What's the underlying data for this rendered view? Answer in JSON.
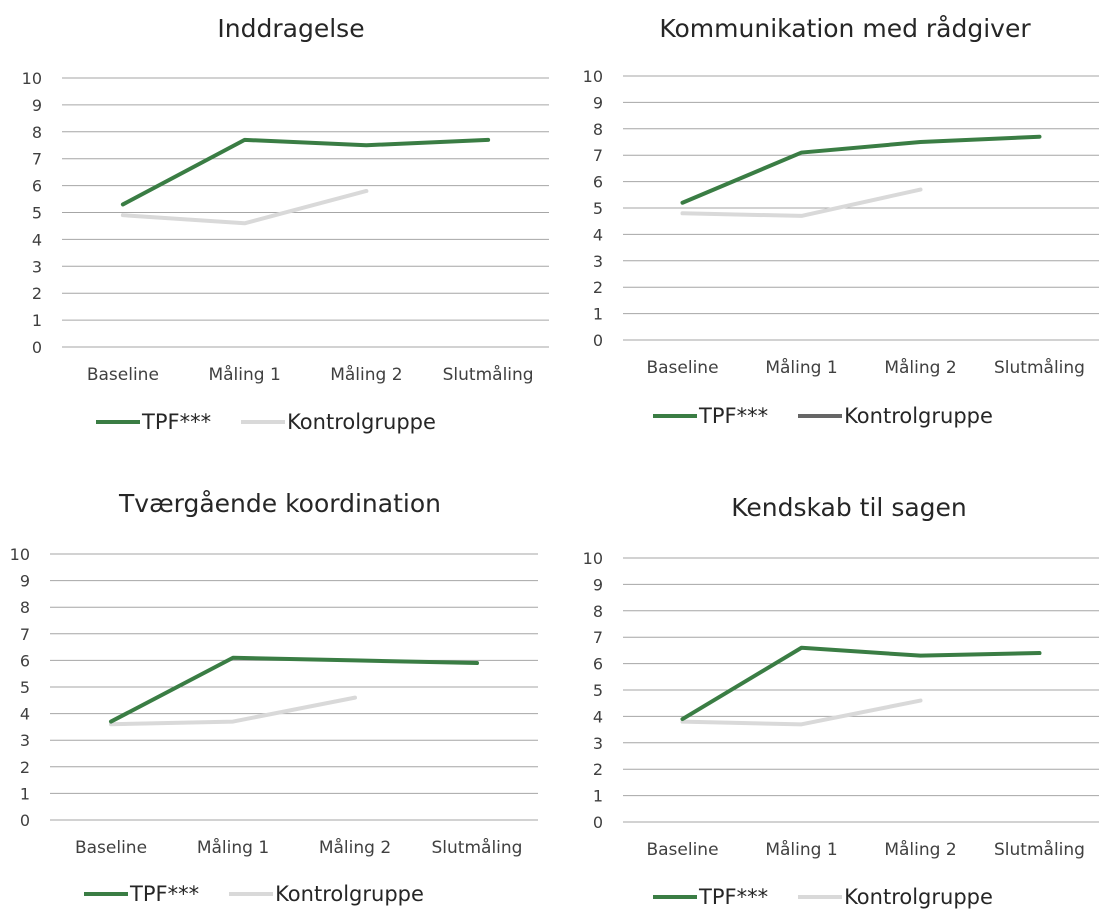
{
  "chart_data": [
    {
      "type": "line",
      "title": "Inddragelse",
      "categories": [
        "Baseline",
        "Måling 1",
        "Måling 2",
        "Slutmåling"
      ],
      "ylim": [
        0,
        10
      ],
      "yticks": [
        "0",
        "1",
        "2",
        "3",
        "4",
        "5",
        "6",
        "7",
        "8",
        "9",
        "10"
      ],
      "grid": true,
      "legend_position": "bottom",
      "series": [
        {
          "name": "TPF***",
          "color": "#3a7d44",
          "values": [
            5.3,
            7.7,
            7.5,
            7.7
          ]
        },
        {
          "name": "Kontrolgruppe",
          "color": "#d9d9d9",
          "values": [
            4.9,
            4.6,
            5.8,
            null
          ]
        }
      ]
    },
    {
      "type": "line",
      "title": "Kommunikation med rådgiver",
      "categories": [
        "Baseline",
        "Måling 1",
        "Måling 2",
        "Slutmåling"
      ],
      "ylim": [
        0,
        10
      ],
      "yticks": [
        "0",
        "1",
        "2",
        "3",
        "4",
        "5",
        "6",
        "7",
        "8",
        "9",
        "10"
      ],
      "grid": true,
      "legend_position": "bottom",
      "series": [
        {
          "name": "TPF***",
          "color": "#3a7d44",
          "values": [
            5.2,
            7.1,
            7.5,
            7.7
          ]
        },
        {
          "name": "Kontrolgruppe",
          "color": "#d9d9d9",
          "legend_color": "#666666",
          "values": [
            4.8,
            4.7,
            5.7,
            null
          ]
        }
      ]
    },
    {
      "type": "line",
      "title": "Tværgående koordination",
      "categories": [
        "Baseline",
        "Måling 1",
        "Måling 2",
        "Slutmåling"
      ],
      "ylim": [
        0,
        10
      ],
      "yticks": [
        "0",
        "1",
        "2",
        "3",
        "4",
        "5",
        "6",
        "7",
        "8",
        "9",
        "10"
      ],
      "grid": true,
      "legend_position": "bottom",
      "series": [
        {
          "name": "TPF***",
          "color": "#3a7d44",
          "values": [
            3.7,
            6.1,
            6.0,
            5.9
          ]
        },
        {
          "name": "Kontrolgruppe",
          "color": "#d9d9d9",
          "values": [
            3.6,
            3.7,
            4.6,
            null
          ]
        }
      ]
    },
    {
      "type": "line",
      "title": "Kendskab til sagen",
      "categories": [
        "Baseline",
        "Måling 1",
        "Måling 2",
        "Slutmåling"
      ],
      "ylim": [
        0,
        10
      ],
      "yticks": [
        "0",
        "1",
        "2",
        "3",
        "4",
        "5",
        "6",
        "7",
        "8",
        "9",
        "10"
      ],
      "grid": true,
      "legend_position": "bottom",
      "series": [
        {
          "name": "TPF***",
          "color": "#3a7d44",
          "values": [
            3.9,
            6.6,
            6.3,
            6.4
          ]
        },
        {
          "name": "Kontrolgruppe",
          "color": "#d9d9d9",
          "values": [
            3.8,
            3.7,
            4.6,
            null
          ]
        }
      ]
    }
  ]
}
